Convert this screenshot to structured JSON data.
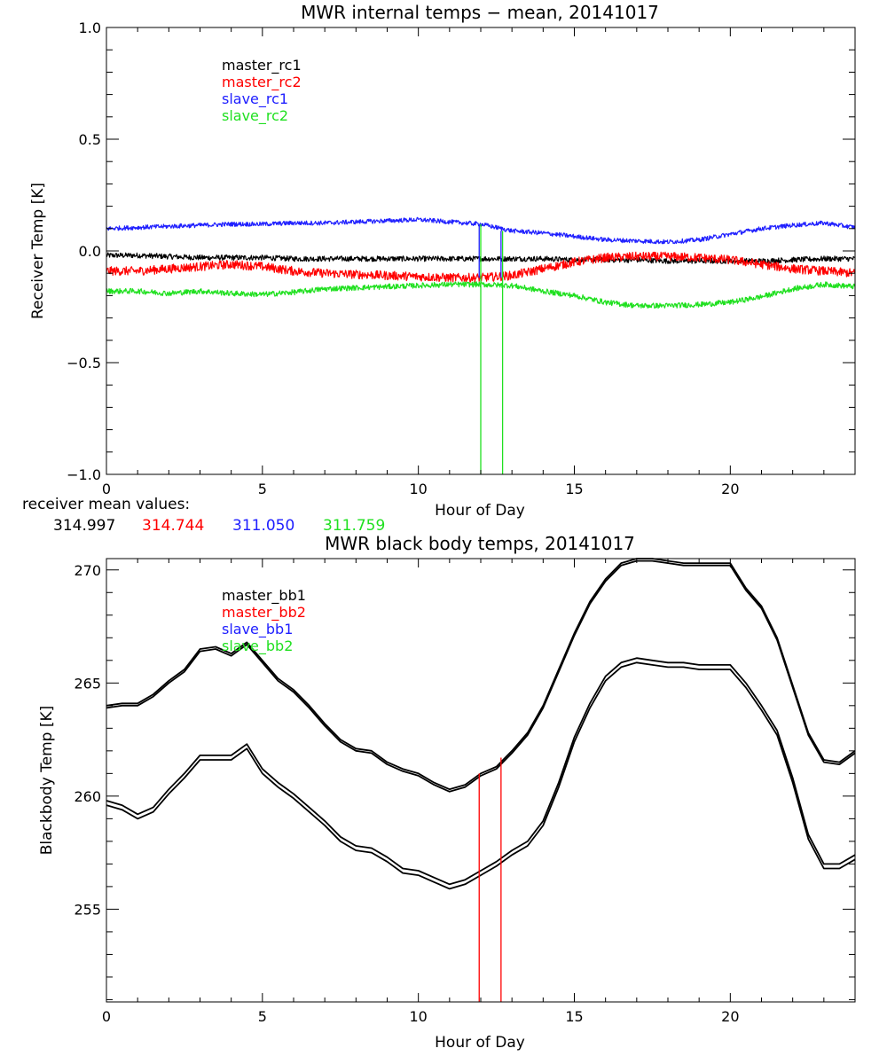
{
  "colors": {
    "master_rc1": "#000000",
    "master_rc2": "#ff0000",
    "slave_rc1": "#2020ff",
    "slave_rc2": "#20e020",
    "marker_top": "#20e020",
    "marker_top2": "#2020ff",
    "marker_bottom": "#ff0000"
  },
  "mean_values": {
    "label": "receiver mean values:",
    "values": [
      "314.997",
      "314.744",
      "311.050",
      "311.759"
    ]
  },
  "chart_data": [
    {
      "type": "line",
      "title": "MWR internal temps − mean, 20141017",
      "xlabel": "Hour of Day",
      "ylabel": "Receiver Temp [K]",
      "xlim": [
        0,
        24
      ],
      "ylim": [
        -1.0,
        1.0
      ],
      "xticks": [
        0,
        5,
        10,
        15,
        20
      ],
      "xtick_labels": [
        "0",
        "5",
        "10",
        "15",
        "20"
      ],
      "yticks": [
        -1.0,
        -0.5,
        0.0,
        0.5,
        1.0
      ],
      "ytick_labels": [
        "−1.0",
        "−0.5",
        "0.0",
        "0.5",
        "1.0"
      ],
      "legend": [
        "master_rc1",
        "master_rc2",
        "slave_rc1",
        "slave_rc2"
      ],
      "legend_position": "top-left",
      "x": [
        0,
        1,
        2,
        3,
        4,
        5,
        6,
        7,
        8,
        9,
        10,
        11,
        12,
        13,
        14,
        15,
        16,
        17,
        18,
        19,
        20,
        21,
        22,
        23,
        24
      ],
      "series": [
        {
          "name": "master_rc1",
          "noise": 0.012,
          "values": [
            -0.02,
            -0.02,
            -0.025,
            -0.03,
            -0.03,
            -0.03,
            -0.035,
            -0.035,
            -0.035,
            -0.035,
            -0.035,
            -0.035,
            -0.035,
            -0.035,
            -0.035,
            -0.04,
            -0.04,
            -0.04,
            -0.045,
            -0.045,
            -0.045,
            -0.045,
            -0.04,
            -0.035,
            -0.035
          ]
        },
        {
          "name": "master_rc2",
          "noise": 0.02,
          "values": [
            -0.09,
            -0.09,
            -0.08,
            -0.07,
            -0.06,
            -0.07,
            -0.09,
            -0.1,
            -0.105,
            -0.11,
            -0.115,
            -0.12,
            -0.12,
            -0.11,
            -0.08,
            -0.05,
            -0.03,
            -0.025,
            -0.025,
            -0.03,
            -0.04,
            -0.06,
            -0.08,
            -0.09,
            -0.1
          ]
        },
        {
          "name": "slave_rc1",
          "noise": 0.01,
          "values": [
            0.1,
            0.105,
            0.11,
            0.115,
            0.12,
            0.12,
            0.125,
            0.125,
            0.13,
            0.135,
            0.14,
            0.13,
            0.12,
            0.09,
            0.08,
            0.065,
            0.05,
            0.045,
            0.04,
            0.05,
            0.075,
            0.1,
            0.115,
            0.125,
            0.105
          ]
        },
        {
          "name": "slave_rc2",
          "noise": 0.012,
          "values": [
            -0.18,
            -0.18,
            -0.19,
            -0.18,
            -0.19,
            -0.195,
            -0.185,
            -0.17,
            -0.165,
            -0.16,
            -0.155,
            -0.15,
            -0.15,
            -0.155,
            -0.18,
            -0.2,
            -0.23,
            -0.245,
            -0.245,
            -0.24,
            -0.23,
            -0.205,
            -0.17,
            -0.15,
            -0.16
          ]
        }
      ],
      "markers": [
        {
          "x": 12.0,
          "y_from": 0.12,
          "y_to": -1.0,
          "color": "marker_top"
        },
        {
          "x": 12.7,
          "y_from": 0.09,
          "y_to": -1.0,
          "color": "marker_top"
        },
        {
          "x": 11.95,
          "y_from": 0.12,
          "y_to": -0.12,
          "color": "marker_top2"
        },
        {
          "x": 12.65,
          "y_from": 0.09,
          "y_to": -0.12,
          "color": "marker_top2"
        }
      ]
    },
    {
      "type": "line",
      "title": "MWR black body temps, 20141017",
      "xlabel": "Hour of Day",
      "ylabel": "Blackbody Temp [K]",
      "xlim": [
        0,
        24
      ],
      "ylim": [
        250.9,
        270.5
      ],
      "xticks": [
        0,
        5,
        10,
        15,
        20
      ],
      "xtick_labels": [
        "0",
        "5",
        "10",
        "15",
        "20"
      ],
      "yticks": [
        255,
        260,
        265,
        270
      ],
      "ytick_labels": [
        "255",
        "260",
        "265",
        "270"
      ],
      "legend": [
        "master_bb1",
        "master_bb2",
        "slave_bb1",
        "slave_bb2"
      ],
      "legend_position": "top-left",
      "x": [
        0,
        0.5,
        1,
        1.5,
        2,
        2.5,
        3,
        3.5,
        4,
        4.5,
        5,
        5.5,
        6,
        6.5,
        7,
        7.5,
        8,
        8.5,
        9,
        9.5,
        10,
        10.5,
        11,
        11.5,
        12,
        12.5,
        13,
        13.5,
        14,
        14.5,
        15,
        15.5,
        16,
        16.5,
        17,
        17.5,
        18,
        18.5,
        19,
        19.5,
        20,
        20.5,
        21,
        21.5,
        22,
        22.5,
        23,
        23.5,
        24
      ],
      "series": [
        {
          "name": "master_bb1",
          "values": [
            264.0,
            264.1,
            264.1,
            264.5,
            265.1,
            265.6,
            266.5,
            266.6,
            266.3,
            266.8,
            266.0,
            265.2,
            264.7,
            264.0,
            263.2,
            262.5,
            262.1,
            262.0,
            261.5,
            261.2,
            261.0,
            260.6,
            260.3,
            260.5,
            261.0,
            261.3,
            262.0,
            262.8,
            264.0,
            265.6,
            267.2,
            268.6,
            269.6,
            270.3,
            270.5,
            270.5,
            270.4,
            270.3,
            270.3,
            270.3,
            270.3,
            269.2,
            268.4,
            267.0,
            264.9,
            262.8,
            261.6,
            261.5,
            262.0
          ]
        },
        {
          "name": "master_bb2",
          "values": [
            263.9,
            264.0,
            264.0,
            264.4,
            265.0,
            265.5,
            266.4,
            266.5,
            266.2,
            266.7,
            265.9,
            265.1,
            264.6,
            263.9,
            263.1,
            262.4,
            262.0,
            261.9,
            261.4,
            261.1,
            260.9,
            260.5,
            260.2,
            260.4,
            260.9,
            261.2,
            261.9,
            262.7,
            263.9,
            265.5,
            267.1,
            268.5,
            269.5,
            270.2,
            270.4,
            270.4,
            270.3,
            270.2,
            270.2,
            270.2,
            270.2,
            269.1,
            268.3,
            266.9,
            264.8,
            262.7,
            261.5,
            261.4,
            261.9
          ]
        },
        {
          "name": "slave_bb1",
          "values": [
            259.8,
            259.6,
            259.2,
            259.5,
            260.3,
            261.0,
            261.8,
            261.8,
            261.8,
            262.3,
            261.2,
            260.6,
            260.1,
            259.5,
            258.9,
            258.2,
            257.8,
            257.7,
            257.3,
            256.8,
            256.7,
            256.4,
            256.1,
            256.3,
            256.7,
            257.1,
            257.6,
            258.0,
            258.9,
            260.6,
            262.6,
            264.1,
            265.3,
            265.9,
            266.1,
            266.0,
            265.9,
            265.9,
            265.8,
            265.8,
            265.8,
            265.0,
            264.0,
            262.9,
            260.8,
            258.3,
            257.0,
            257.0,
            257.4
          ]
        },
        {
          "name": "slave_bb2",
          "values": [
            259.6,
            259.4,
            259.0,
            259.3,
            260.1,
            260.8,
            261.6,
            261.6,
            261.6,
            262.1,
            261.0,
            260.4,
            259.9,
            259.3,
            258.7,
            258.0,
            257.6,
            257.5,
            257.1,
            256.6,
            256.5,
            256.2,
            255.9,
            256.1,
            256.5,
            256.9,
            257.4,
            257.8,
            258.7,
            260.4,
            262.4,
            263.9,
            265.1,
            265.7,
            265.9,
            265.8,
            265.7,
            265.7,
            265.6,
            265.6,
            265.6,
            264.8,
            263.8,
            262.7,
            260.6,
            258.1,
            256.8,
            256.8,
            257.2
          ]
        }
      ],
      "markers": [
        {
          "x": 11.95,
          "y_from": 261.0,
          "y_to": 250.9,
          "color": "marker_bottom"
        },
        {
          "x": 12.65,
          "y_from": 261.7,
          "y_to": 250.9,
          "color": "marker_bottom"
        }
      ]
    }
  ]
}
